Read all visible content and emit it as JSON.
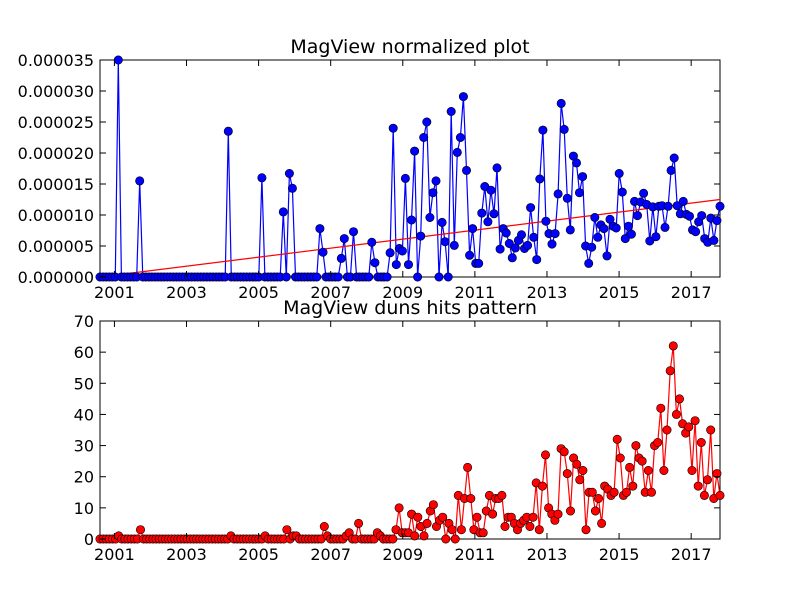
{
  "chart_data": [
    {
      "type": "line",
      "title": "MagView normalized plot",
      "xlabel": "",
      "ylabel": "",
      "xlim": [
        2000.6,
        2017.8
      ],
      "ylim": [
        0,
        3.5e-05
      ],
      "grid": false,
      "x_ticks": [
        "2001",
        "2003",
        "2005",
        "2007",
        "2009",
        "2011",
        "2013",
        "2015",
        "2017"
      ],
      "y_ticks": [
        "0.000000",
        "0.000005",
        "0.000010",
        "0.000015",
        "0.000020",
        "0.000025",
        "0.000030",
        "0.000035"
      ],
      "colors": {
        "series": "#0000ff",
        "trend": "#ff0000"
      },
      "series": [
        {
          "values_e6": [
            0,
            0,
            0,
            0,
            0,
            0,
            35,
            0,
            0,
            0,
            0,
            0,
            0,
            15.5,
            0,
            0,
            0,
            0,
            0,
            0,
            0,
            0,
            0,
            0,
            0,
            0,
            0,
            0,
            0,
            0,
            0,
            0,
            0,
            0,
            0,
            0,
            0,
            0,
            0,
            0,
            0,
            0,
            23.5,
            0,
            0,
            0,
            0,
            0,
            0,
            0,
            0,
            0,
            0,
            16,
            0,
            0,
            0,
            0,
            0,
            0,
            10.5,
            0,
            16.7,
            14.3,
            0,
            0,
            0,
            0,
            0,
            0,
            0,
            0,
            7.8,
            4,
            0,
            0,
            0,
            0,
            0,
            3,
            6.2,
            0,
            0,
            7.3,
            0,
            0,
            0,
            0,
            0,
            5.6,
            2.3,
            0,
            0,
            0,
            0,
            3.9,
            24,
            2,
            4.6,
            4.2,
            15.9,
            2,
            9.2,
            20.3,
            0,
            6.6,
            22.5,
            25,
            9.6,
            13.6,
            15.5,
            0,
            8.8,
            5.7,
            0,
            26.7,
            5.1,
            20.1,
            22.5,
            29.1,
            17.2,
            3.5,
            7.8,
            2.2,
            2.2,
            10.3,
            14.6,
            8.9,
            14,
            10.2,
            17.6,
            4.5,
            7.8,
            7.1,
            5.4,
            3.1,
            4.7,
            5.9,
            6.8,
            4.6,
            5.1,
            11.2,
            6.4,
            2.8,
            15.8,
            23.7,
            9,
            7,
            5.3,
            7,
            13.4,
            28,
            23.8,
            12.7,
            7.6,
            19.5,
            18.4,
            13.6,
            16.2,
            5,
            2.2,
            4.8,
            9.6,
            6.4,
            8.4,
            7.8,
            3.4,
            9.3,
            8.2,
            7.9,
            16.7,
            13.7,
            6.2,
            8.2,
            6.9,
            12.2,
            9.9,
            12.1,
            13.5,
            11.7,
            5.8,
            11.3,
            6.5,
            11.4,
            11.5,
            8,
            11.4,
            17.2,
            19.2,
            11.5,
            10.2,
            12.2,
            10.1,
            9.8,
            7.6,
            7.3,
            8.9,
            9.9,
            6.2,
            5.6,
            9.5,
            5.9,
            9.1,
            11.4
          ],
          "marker": "circle"
        }
      ],
      "trend_line": {
        "start_value": 0,
        "end_value": 1.25e-05
      }
    },
    {
      "type": "line",
      "title": "MagView duns hits pattern",
      "xlabel": "",
      "ylabel": "",
      "xlim": [
        2000.6,
        2017.8
      ],
      "ylim": [
        0,
        70
      ],
      "grid": false,
      "x_ticks": [
        "2001",
        "2003",
        "2005",
        "2007",
        "2009",
        "2011",
        "2013",
        "2015",
        "2017"
      ],
      "y_ticks": [
        "0",
        "10",
        "20",
        "30",
        "40",
        "50",
        "60",
        "70"
      ],
      "colors": {
        "series": "#ff0000"
      },
      "series": [
        {
          "values": [
            0,
            0,
            0,
            0,
            0,
            0,
            1,
            0,
            0,
            0,
            0,
            0,
            0,
            3,
            0,
            0,
            0,
            0,
            0,
            0,
            0,
            0,
            0,
            0,
            0,
            0,
            0,
            0,
            0,
            0,
            0,
            0,
            0,
            0,
            0,
            0,
            0,
            0,
            0,
            0,
            0,
            0,
            1,
            0,
            0,
            0,
            0,
            0,
            0,
            0,
            0,
            0,
            0,
            1,
            0,
            0,
            0,
            0,
            0,
            0,
            3,
            0,
            1,
            1,
            0,
            0,
            0,
            0,
            0,
            0,
            0,
            0,
            4,
            1,
            0,
            0,
            0,
            0,
            0,
            1,
            2,
            0,
            0,
            5,
            0,
            0,
            0,
            0,
            0,
            2,
            1,
            0,
            0,
            0,
            0,
            3,
            10,
            2,
            2,
            2,
            8,
            1,
            7,
            4,
            1,
            5,
            9,
            11,
            4,
            6,
            7,
            0,
            5,
            3,
            0,
            14,
            3,
            13,
            23,
            13,
            3,
            7,
            2,
            2,
            9,
            14,
            8,
            13,
            13,
            14,
            4,
            7,
            7,
            5,
            3,
            5,
            6,
            7,
            4,
            7,
            18,
            3,
            17,
            27,
            10,
            8,
            6,
            8,
            29,
            28,
            21,
            9,
            26,
            24,
            19,
            22,
            3,
            15,
            15,
            9,
            13,
            5,
            17,
            16,
            14,
            15,
            32,
            26,
            14,
            15,
            23,
            17,
            30,
            26,
            25,
            15,
            22,
            15,
            30,
            31,
            42,
            22,
            35,
            54,
            62,
            40,
            45,
            37,
            34,
            36,
            22,
            38,
            17,
            31,
            14,
            19,
            35,
            13,
            21,
            14
          ],
          "marker": "circle"
        }
      ]
    }
  ]
}
